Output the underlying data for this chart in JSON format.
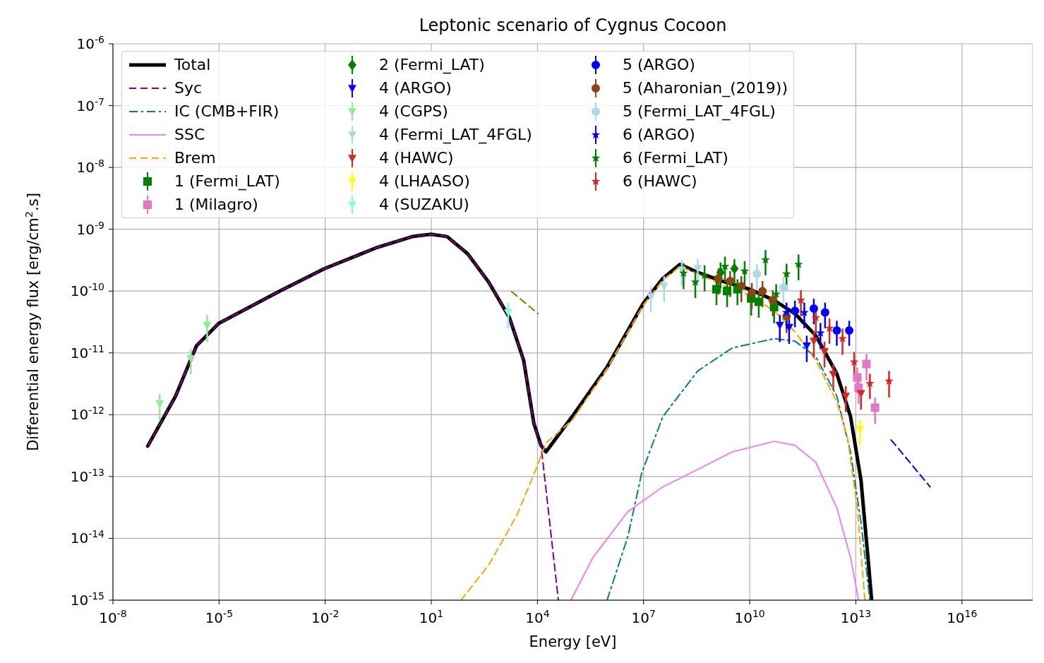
{
  "chart_data": {
    "type": "scatter",
    "title": "Leptonic scenario of Cygnus Cocoon",
    "xlabel": "Energy [eV]",
    "ylabel": "Differential energy flux [erg/cm$^{2}$.s]",
    "log": "xy",
    "grid": true,
    "legend": "top left",
    "xlim": [
      1e-08,
      1e+18
    ],
    "ylim": [
      1e-15,
      1e-06
    ],
    "xticks": [
      {
        "value": 1e-08,
        "label": "10$^{-8}$"
      },
      {
        "value": 1e-05,
        "label": "10$^{-5}$"
      },
      {
        "value": 0.01,
        "label": "10$^{-2}$"
      },
      {
        "value": 10,
        "label": "10$^{1}$"
      },
      {
        "value": 10000.0,
        "label": "10$^{4}$"
      },
      {
        "value": 10000000.0,
        "label": "10$^{7}$"
      },
      {
        "value": 10000000000.0,
        "label": "10$^{10}$"
      },
      {
        "value": 10000000000000.0,
        "label": "10$^{13}$"
      },
      {
        "value": 1e+16,
        "label": "10$^{16}$"
      }
    ],
    "yticks": [
      {
        "value": 1e-15,
        "label": "10$^{-15}$"
      },
      {
        "value": 1e-14,
        "label": "10$^{-14}$"
      },
      {
        "value": 1e-13,
        "label": "10$^{-13}$"
      },
      {
        "value": 1e-12,
        "label": "10$^{-12}$"
      },
      {
        "value": 1e-11,
        "label": "10$^{-11}$"
      },
      {
        "value": 1e-10,
        "label": "10$^{-10}$"
      },
      {
        "value": 1e-09,
        "label": "10$^{-9}$"
      },
      {
        "value": 1e-08,
        "label": "10$^{-8}$"
      },
      {
        "value": 1e-07,
        "label": "10$^{-7}$"
      },
      {
        "value": 1e-06,
        "label": "10$^{-6}$"
      }
    ],
    "series": [
      {
        "name": "Total",
        "type": "line",
        "color": "#000000",
        "line_style": "solid",
        "x": [
          9.6e-08,
          5.9e-07,
          2.3e-06,
          9.8e-06,
          0.00052,
          0.0095,
          0.3,
          2.9,
          9.8,
          28,
          107,
          417,
          1620,
          4070,
          7940,
          12600,
          17400,
          95500,
          930000.0,
          9800000.0,
          35000000.0,
          107000000.0,
          340000000.0,
          2000000000.0,
          10000000000.0,
          49000000000.0,
          190000000000.0,
          740000000000.0,
          2900000000000.0,
          7100000000000.0,
          14000000000000.0,
          22000000000000.0,
          28000000000000.0
        ],
        "values": [
          3.1e-13,
          2e-12,
          1.3e-11,
          3e-11,
          1e-10,
          2.3e-10,
          5.1e-10,
          7.6e-10,
          8.3e-10,
          7.6e-10,
          4e-10,
          1.4e-10,
          3.7e-11,
          7.6e-12,
          7.2e-13,
          3.2e-13,
          2.5e-13,
          9.3e-13,
          5.9e-12,
          6.3e-11,
          1.6e-10,
          2.7e-10,
          2e-10,
          1.4e-10,
          1.07e-10,
          7.1e-11,
          4.3e-11,
          1.9e-11,
          4.6e-12,
          9.3e-13,
          8.7e-14,
          4.9e-15,
          1e-15
        ]
      },
      {
        "name": "Syc",
        "type": "line",
        "color": "#800080",
        "line_style": "dashed",
        "x": [
          9.6e-08,
          5.9e-07,
          2.3e-06,
          9.8e-06,
          0.00052,
          0.0095,
          0.3,
          2.9,
          9.8,
          28,
          107,
          417,
          1620,
          4070,
          7940,
          12600,
          20000,
          39000
        ],
        "values": [
          3.1e-13,
          2e-12,
          1.3e-11,
          3e-11,
          1e-10,
          2.3e-10,
          5.1e-10,
          7.6e-10,
          8.3e-10,
          7.6e-10,
          4e-10,
          1.4e-10,
          3.7e-11,
          7.6e-12,
          7.2e-13,
          3.2e-13,
          3.1e-14,
          1e-15
        ]
      },
      {
        "name": "IC (CMB+FIR)",
        "type": "line",
        "color": "#008080",
        "line_style": "dashdot",
        "x": [
          930000.0,
          3600000.0,
          8900000.0,
          35000000.0,
          340000000.0,
          3200000000.0,
          49000000000.0,
          190000000000.0,
          740000000000.0,
          2900000000000.0,
          7100000000000.0,
          14000000000000.0,
          25000000000000.0
        ],
        "values": [
          1e-15,
          1.07e-14,
          1.15e-13,
          9.3e-13,
          5.1e-12,
          1.2e-11,
          1.7e-11,
          1.55e-11,
          8.7e-12,
          2e-12,
          2.5e-13,
          1.8e-14,
          1e-15
        ]
      },
      {
        "name": "SSC",
        "type": "line",
        "color": "#ee82ee",
        "line_style": "solid",
        "x": [
          89000.0,
          370000.0,
          3600000.0,
          35000000.0,
          340000000.0,
          3200000000.0,
          49000000000.0,
          190000000000.0,
          740000000000.0,
          2900000000000.0,
          7100000000000.0,
          12000000000000.0
        ],
        "values": [
          1e-15,
          4.9e-15,
          2.7e-14,
          6.8e-14,
          1.3e-13,
          2.5e-13,
          3.7e-13,
          3.2e-13,
          1.7e-13,
          3.1e-14,
          4.9e-15,
          1e-15
        ]
      },
      {
        "name": "Brem",
        "type": "line",
        "color": "#ffa500",
        "line_style": "dashed",
        "x": [
          69,
          417,
          2570,
          10000.0,
          17400.0,
          95500.0,
          930000.0,
          9800000.0,
          35000000.0,
          107000000.0,
          340000000.0,
          2000000000.0,
          10000000000.0,
          49000000000.0,
          190000000000.0,
          740000000000.0,
          2900000000000.0,
          5800000000000.0,
          11000000000000.0,
          18000000000000.0
        ],
        "values": [
          1e-15,
          3.7e-15,
          2.3e-14,
          1.5e-13,
          3.5e-13,
          8.1e-13,
          5.6e-12,
          5.9e-11,
          1.5e-10,
          2.5e-10,
          1.9e-10,
          1.2e-10,
          8.5e-11,
          4.8e-11,
          2.2e-11,
          7.6e-12,
          1.6e-12,
          4.3e-13,
          3.1e-14,
          1e-15
        ]
      },
      {
        "name": "1 (Fermi_LAT)",
        "color": "#008000",
        "marker": "square",
        "x": [
          1150000000.0,
          2300000000.0,
          4500000000.0,
          11000000000.0,
          18000000000.0,
          49000000000.0
        ],
        "values": [
          1.07e-10,
          1e-10,
          1.07e-10,
          7.6e-11,
          6.7e-11,
          5.5e-11
        ],
        "errors": [
          4.8e-11,
          4.5e-11,
          4.8e-11,
          3.6e-11,
          3e-11,
          2.5e-11
        ]
      },
      {
        "name": "1 (Milagro)",
        "color": "#e377c2",
        "marker": "square",
        "x": [
          11000000000000.0,
          12000000000000.0,
          20000000000000.0,
          35000000000000.0
        ],
        "values": [
          4e-12,
          2.7e-12,
          6.6e-12,
          1.3e-12
        ],
        "errors": [
          1.8e-12,
          1.2e-12,
          3e-12,
          5.9e-13
        ]
      },
      {
        "name": "2 (Fermi_LAT)",
        "color": "#008000",
        "marker": "diamond",
        "x": [
          1500000000.0,
          3700000000.0
        ],
        "values": [
          2e-10,
          2.3e-10
        ],
        "errors": [
          9e-11,
          1e-10
        ]
      },
      {
        "name": "4 (ARGO)",
        "color": "#0000ff",
        "marker": "triangle",
        "x": [
          71000000000.0,
          130000000000.0,
          410000000000.0
        ],
        "values": [
          2.8e-11,
          2.6e-11,
          1.3e-11
        ],
        "errors": [
          1.3e-11,
          1.2e-11,
          5.9e-12
        ]
      },
      {
        "name": "4 (CGPS)",
        "color": "#90ee90",
        "marker": "triangle",
        "x": [
          2.1e-07,
          1.6e-06,
          4.6e-06
        ],
        "values": [
          1.5e-12,
          8.1e-12,
          2.8e-11
        ],
        "errors": [
          6.8e-13,
          3.6e-12,
          1.3e-11
        ]
      },
      {
        "name": "4 (Fermi_LAT_4FGL)",
        "color": "#add8e6",
        "marker": "triangle",
        "x": [
          16000000.0,
          38000000.0,
          120000000.0,
          340000000.0
        ],
        "values": [
          8.1e-11,
          1.2e-10,
          2.2e-10,
          2.3e-10
        ],
        "errors": [
          3.6e-11,
          5.4e-11,
          9.9e-11,
          1e-10
        ]
      },
      {
        "name": "4 (HAWC)",
        "color": "#d62728",
        "marker": "triangle",
        "x": [
          650000000000.0,
          1300000000000.0,
          2300000000000.0,
          5200000000000.0,
          14000000000000.0
        ],
        "values": [
          1.55e-11,
          1.05e-11,
          4.5e-12,
          2e-12,
          2.2e-12
        ],
        "errors": [
          7e-12,
          4.7e-12,
          2e-12,
          9e-13,
          9.9e-13
        ]
      },
      {
        "name": "4 (LHAASO)",
        "color": "#ffff00",
        "marker": "triangle",
        "x": [
          13000000000000.0
        ],
        "values": [
          5.8e-13
        ],
        "errors": [
          2.6e-13
        ]
      },
      {
        "name": "4 (SUZAKU)",
        "color": "#7fffd4",
        "marker": "triangle",
        "x": [
          1500
        ],
        "values": [
          4.5e-11
        ],
        "errors": [
          2e-11
        ]
      },
      {
        "name": "5 (ARGO)",
        "color": "#0000ff",
        "marker": "circle",
        "x": [
          190000000000.0,
          650000000000.0,
          1350000000000.0,
          2900000000000.0,
          6500000000000.0
        ],
        "values": [
          4.8e-11,
          5.2e-11,
          4.5e-11,
          2.3e-11,
          2.3e-11
        ],
        "errors": [
          2.2e-11,
          2.3e-11,
          2e-11,
          1e-11,
          1e-11
        ]
      },
      {
        "name": "5 (Aharonian_(2019))",
        "color": "#8b4513",
        "marker": "circle",
        "x": [
          1300000000.0,
          2800000000.0,
          5800000000.0,
          11500000000.0,
          23000000000.0,
          45000000000.0,
          110000000000.0
        ],
        "values": [
          1.6e-10,
          1.45e-10,
          1.2e-10,
          9.3e-11,
          1e-10,
          7.1e-11,
          3.9e-11
        ],
        "errors": [
          7.2e-11,
          6.5e-11,
          5.4e-11,
          4.2e-11,
          4.5e-11,
          3.2e-11,
          1.8e-11
        ]
      },
      {
        "name": "5 (Fermi_LAT_4FGL)",
        "color": "#add8e6",
        "marker": "circle",
        "x": [
          16000000000.0,
          90000000000.0
        ],
        "values": [
          1.9e-10,
          1.15e-10
        ],
        "errors": [
          8.6e-11,
          5.2e-11
        ]
      },
      {
        "name": "6 (ARGO)",
        "color": "#0000ff",
        "marker": "star",
        "x": [
          110000000000.0,
          350000000000.0,
          1000000000000.0
        ],
        "values": [
          4.5e-11,
          4.5e-11,
          2.1e-11
        ],
        "errors": [
          2e-11,
          2e-11,
          9.5e-12
        ]
      },
      {
        "name": "6 (Fermi_LAT)",
        "color": "#008000",
        "marker": "star",
        "x": [
          135000000.0,
          290000000.0,
          530000000.0,
          2000000000.0,
          7200000000.0,
          28000000000.0,
          56000000000.0,
          110000000000.0,
          240000000000.0
        ],
        "values": [
          1.95e-10,
          1.4e-10,
          1.8e-10,
          2.5e-10,
          2.1e-10,
          3.2e-10,
          8.9e-11,
          1.9e-10,
          2.7e-10
        ],
        "errors": [
          8.8e-11,
          6.3e-11,
          8.1e-11,
          1.1e-10,
          9.5e-11,
          1.4e-10,
          4e-11,
          8.6e-11,
          1.2e-10
        ]
      },
      {
        "name": "6 (HAWC)",
        "color": "#d62728",
        "marker": "star",
        "x": [
          280000000000.0,
          740000000000.0,
          1800000000000.0,
          4200000000000.0,
          9000000000000.0,
          25000000000000.0,
          87000000000000.0
        ],
        "values": [
          7.1e-11,
          3.7e-11,
          2.5e-11,
          1.7e-11,
          7.1e-12,
          3.2e-12,
          3.5e-12
        ],
        "errors": [
          3.2e-11,
          1.7e-11,
          1.1e-11,
          7.7e-12,
          3.2e-12,
          1.4e-12,
          1.6e-12
        ]
      },
      {
        "type": "line",
        "color": "#808000",
        "line_style": "dashed",
        "x": [
          1860,
          10500.0
        ],
        "values": [
          9.8e-11,
          4.3e-11
        ]
      },
      {
        "type": "line",
        "color": "#0000ff",
        "line_style": "dashed",
        "x": [
          100000000000000.0,
          1260000000000000.0
        ],
        "values": [
          3.9e-13,
          6.8e-14
        ]
      }
    ]
  }
}
